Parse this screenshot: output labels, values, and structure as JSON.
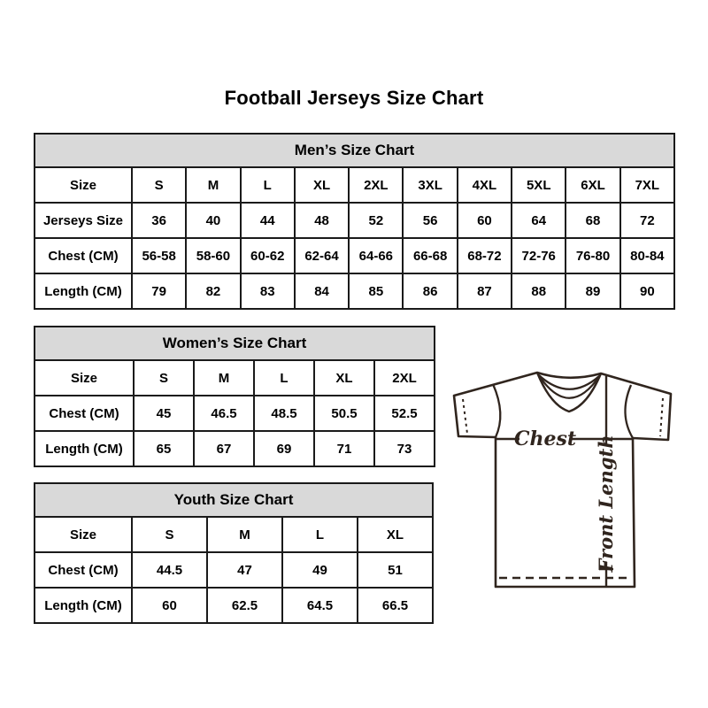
{
  "title": "Football Jerseys Size Chart",
  "tables": {
    "mens": {
      "name": "mens-size-chart",
      "title": "Men’s Size Chart",
      "rows": [
        [
          "Size",
          "S",
          "M",
          "L",
          "XL",
          "2XL",
          "3XL",
          "4XL",
          "5XL",
          "6XL",
          "7XL"
        ],
        [
          "Jerseys Size",
          "36",
          "40",
          "44",
          "48",
          "52",
          "56",
          "60",
          "64",
          "68",
          "72"
        ],
        [
          "Chest (CM)",
          "56-58",
          "58-60",
          "60-62",
          "62-64",
          "64-66",
          "66-68",
          "68-72",
          "72-76",
          "76-80",
          "80-84"
        ],
        [
          "Length (CM)",
          "79",
          "82",
          "83",
          "84",
          "85",
          "86",
          "87",
          "88",
          "89",
          "90"
        ]
      ]
    },
    "womens": {
      "name": "womens-size-chart",
      "title": "Women’s Size Chart",
      "rows": [
        [
          "Size",
          "S",
          "M",
          "L",
          "XL",
          "2XL"
        ],
        [
          "Chest (CM)",
          "45",
          "46.5",
          "48.5",
          "50.5",
          "52.5"
        ],
        [
          "Length (CM)",
          "65",
          "67",
          "69",
          "71",
          "73"
        ]
      ]
    },
    "youth": {
      "name": "youth-size-chart",
      "title": "Youth Size Chart",
      "rows": [
        [
          "Size",
          "S",
          "M",
          "L",
          "XL"
        ],
        [
          "Chest (CM)",
          "44.5",
          "47",
          "49",
          "51"
        ],
        [
          "Length (CM)",
          "60",
          "62.5",
          "64.5",
          "66.5"
        ]
      ]
    }
  },
  "diagram": {
    "chest_label": "Chest",
    "front_length_label": "Front Length"
  },
  "colors": {
    "header_bg": "#d9d9d9",
    "table_border": "#1a1a1a",
    "text": "#000000",
    "diagram_line": "#30251e"
  }
}
